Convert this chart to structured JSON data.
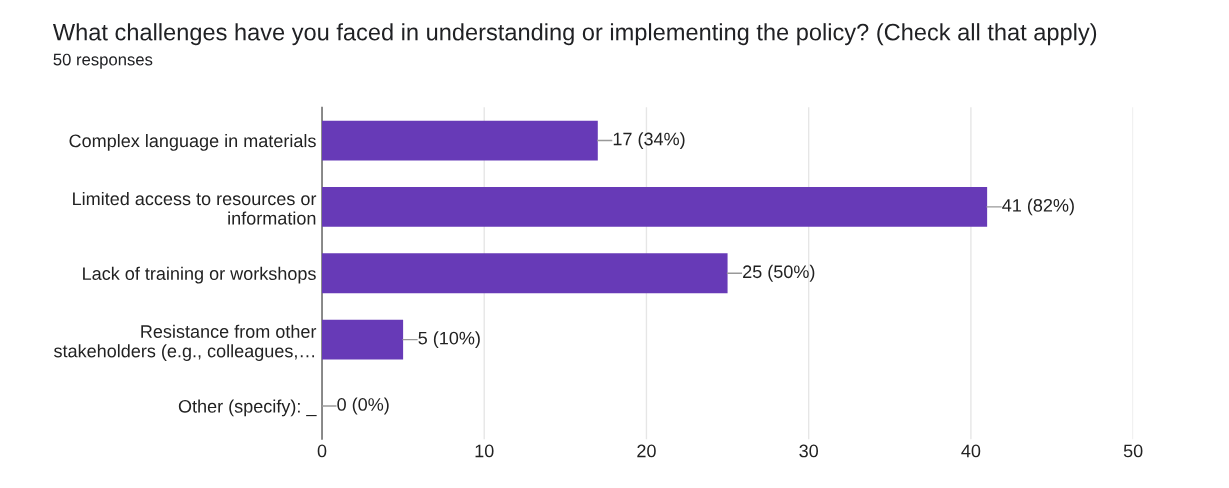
{
  "chart_data": {
    "type": "bar",
    "orientation": "horizontal",
    "title": "What challenges have you faced in understanding or implementing the policy? (Check all that apply)",
    "subtitle": "50 responses",
    "categories": [
      "Complex language in materials",
      "Limited access to resources or\ninformation",
      "Lack of training or workshops",
      "Resistance from other\nstakeholders (e.g., colleagues,…",
      "Other (specify): _"
    ],
    "values": [
      17,
      41,
      25,
      5,
      0
    ],
    "value_labels": [
      "17 (34%)",
      "41 (82%)",
      "25 (50%)",
      "5 (10%)",
      "0 (0%)"
    ],
    "color": "#673ab7",
    "xlim": [
      0,
      50
    ],
    "xticks": [
      0,
      10,
      20,
      30,
      40,
      50
    ],
    "grid": "x",
    "legend": false
  }
}
